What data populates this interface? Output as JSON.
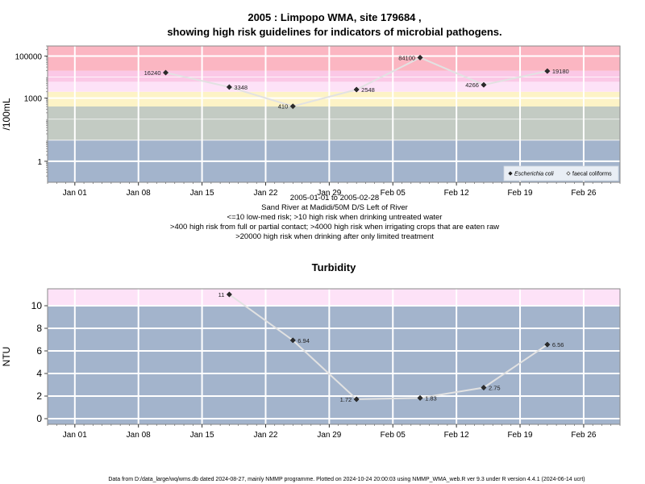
{
  "chart_data": [
    {
      "type": "line",
      "title": "2005 : Limpopo WMA, site 179684 ,",
      "subtitle": "showing high risk guidelines for indicators of microbial pathogens.",
      "ylabel": "/100mL",
      "y_scale": "log10",
      "ylim": [
        0.1,
        300000
      ],
      "xlim": [
        "2004-12-29",
        "2005-03-02"
      ],
      "x_ticks": [
        {
          "date": "2005-01-01",
          "label": "Jan 01"
        },
        {
          "date": "2005-01-08",
          "label": "Jan 08"
        },
        {
          "date": "2005-01-15",
          "label": "Jan 15"
        },
        {
          "date": "2005-01-22",
          "label": "Jan 22"
        },
        {
          "date": "2005-01-29",
          "label": "Jan 29"
        },
        {
          "date": "2005-02-05",
          "label": "Feb 05"
        },
        {
          "date": "2005-02-12",
          "label": "Feb 12"
        },
        {
          "date": "2005-02-19",
          "label": "Feb 19"
        },
        {
          "date": "2005-02-26",
          "label": "Feb 26"
        }
      ],
      "y_ticks": [
        {
          "value": 1,
          "label": "1"
        },
        {
          "value": 1000,
          "label": "1000"
        },
        {
          "value": 100000,
          "label": "100000"
        }
      ],
      "bands": [
        {
          "from": 0.1,
          "to": 10,
          "color": "#a3b4cc"
        },
        {
          "from": 10,
          "to": 400,
          "color": "#c3cbc3"
        },
        {
          "from": 400,
          "to": 2000,
          "color": "#fdf3c6"
        },
        {
          "from": 2000,
          "to": 6000,
          "color": "#fde2f7"
        },
        {
          "from": 6000,
          "to": 20000,
          "color": "#fbc8e6"
        },
        {
          "from": 20000,
          "to": 300000,
          "color": "#fbb6c2"
        }
      ],
      "series": [
        {
          "name": "Escherichia coli",
          "marker": "filled-diamond",
          "x": [
            "2005-01-11",
            "2005-01-18",
            "2005-01-25",
            "2005-02-01",
            "2005-02-08",
            "2005-02-15",
            "2005-02-22"
          ],
          "values": [
            16240,
            3348,
            410,
            2548,
            84100,
            4266,
            19180
          ],
          "labels": [
            "16240",
            "3348",
            "410",
            "2548",
            "84100",
            "4266",
            "19180"
          ],
          "label_side": [
            "left",
            "right",
            "left",
            "right",
            "left",
            "left",
            "right"
          ]
        }
      ],
      "legend": {
        "position": "bottom-right",
        "entries": [
          {
            "label": "Escherichia coli",
            "marker": "filled-diamond"
          },
          {
            "label": "faecal coliforms",
            "marker": "open-diamond"
          }
        ]
      },
      "notes": [
        "2005-01-01 to 2005-02-28",
        "Sand River at Madidi/50M D/S Left of River",
        "<=10 low-med risk; >10 high risk when drinking untreated water",
        ">400 high risk from full or partial contact; >4000 high risk when irrigating crops that are eaten raw",
        ">20000 high risk when drinking after only limited treatment"
      ],
      "colors": {
        "line": "#e2e2e2",
        "point": "#2b2b2b",
        "grid": "#ffffff"
      }
    },
    {
      "type": "line",
      "title": "Turbidity",
      "ylabel": "NTU",
      "y_scale": "linear",
      "ylim": [
        -0.5,
        11.5
      ],
      "xlim": [
        "2004-12-29",
        "2005-03-02"
      ],
      "x_ticks": [
        {
          "date": "2005-01-01",
          "label": "Jan 01"
        },
        {
          "date": "2005-01-08",
          "label": "Jan 08"
        },
        {
          "date": "2005-01-15",
          "label": "Jan 15"
        },
        {
          "date": "2005-01-22",
          "label": "Jan 22"
        },
        {
          "date": "2005-01-29",
          "label": "Jan 29"
        },
        {
          "date": "2005-02-05",
          "label": "Feb 05"
        },
        {
          "date": "2005-02-12",
          "label": "Feb 12"
        },
        {
          "date": "2005-02-19",
          "label": "Feb 19"
        },
        {
          "date": "2005-02-26",
          "label": "Feb 26"
        }
      ],
      "y_ticks": [
        {
          "value": 0,
          "label": "0"
        },
        {
          "value": 2,
          "label": "2"
        },
        {
          "value": 4,
          "label": "4"
        },
        {
          "value": 6,
          "label": "6"
        },
        {
          "value": 8,
          "label": "8"
        },
        {
          "value": 10,
          "label": "10"
        }
      ],
      "bands": [
        {
          "from": -0.5,
          "to": 10,
          "color": "#a3b4cc"
        },
        {
          "from": 10,
          "to": 11.5,
          "color": "#fde2f7"
        }
      ],
      "series": [
        {
          "marker": "filled-diamond",
          "x": [
            "2005-01-18",
            "2005-01-25",
            "2005-02-01",
            "2005-02-08",
            "2005-02-15",
            "2005-02-22"
          ],
          "values": [
            11,
            6.94,
            1.72,
            1.83,
            2.75,
            6.56
          ],
          "labels": [
            "11",
            "6.94",
            "1.72",
            "1.83",
            "2.75",
            "6.56"
          ],
          "label_side": [
            "left",
            "right",
            "left",
            "right",
            "right",
            "right"
          ]
        }
      ],
      "colors": {
        "line": "#e2e2e2",
        "point": "#2b2b2b",
        "grid": "#ffffff"
      }
    }
  ],
  "footer": "Data from D:/data_large/wq/wms.db dated 2024-08-27, mainly NMMP programme. Plotted on 2024-10-24 20:00:03 using NMMP_WMA_web.R ver 9.3 under R version 4.4.1 (2024-06-14 ucrt)"
}
